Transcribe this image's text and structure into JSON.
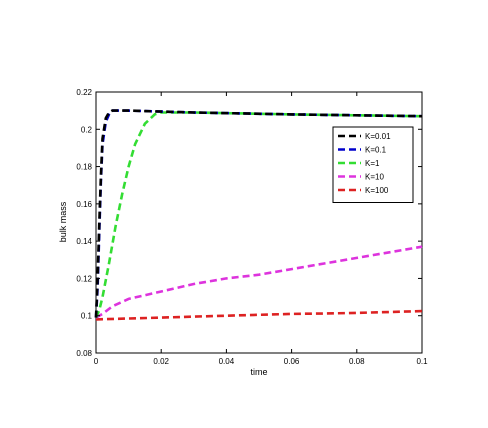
{
  "chart_data": {
    "type": "line",
    "title": "",
    "xlabel": "time",
    "ylabel": "bulk mass",
    "xlim": [
      0,
      0.1
    ],
    "ylim": [
      0.08,
      0.22
    ],
    "xticks": [
      0,
      0.02,
      0.04,
      0.06,
      0.08,
      0.1
    ],
    "yticks": [
      0.08,
      0.1,
      0.12,
      0.14,
      0.16,
      0.18,
      0.2,
      0.22
    ],
    "xtick_labels": [
      "0",
      "0.02",
      "0.04",
      "0.06",
      "0.08",
      "0.1"
    ],
    "ytick_labels": [
      "0.08",
      "0.1",
      "0.12",
      "0.14",
      "0.16",
      "0.18",
      "0.2",
      "0.22"
    ],
    "grid": false,
    "legend_position": "top-right",
    "series": [
      {
        "name": "K=0.01",
        "color": "#000000",
        "x": [
          0,
          0.0005,
          0.001,
          0.0015,
          0.002,
          0.003,
          0.004,
          0.005,
          0.007,
          0.01,
          0.03,
          0.06,
          0.1
        ],
        "y": [
          0.099,
          0.12,
          0.15,
          0.175,
          0.195,
          0.206,
          0.209,
          0.21,
          0.21,
          0.21,
          0.209,
          0.208,
          0.207
        ]
      },
      {
        "name": "K=0.1",
        "color": "#0000cc",
        "x": [
          0,
          0.0005,
          0.001,
          0.0015,
          0.002,
          0.003,
          0.004,
          0.005,
          0.007,
          0.01,
          0.03,
          0.06,
          0.1
        ],
        "y": [
          0.099,
          0.115,
          0.145,
          0.172,
          0.192,
          0.204,
          0.208,
          0.21,
          0.21,
          0.21,
          0.209,
          0.208,
          0.207
        ]
      },
      {
        "name": "K=1",
        "color": "#33dd33",
        "x": [
          0,
          0.001,
          0.002,
          0.004,
          0.006,
          0.008,
          0.01,
          0.012,
          0.015,
          0.018,
          0.02,
          0.03,
          0.06,
          0.1
        ],
        "y": [
          0.099,
          0.103,
          0.11,
          0.128,
          0.148,
          0.165,
          0.18,
          0.192,
          0.203,
          0.208,
          0.209,
          0.209,
          0.208,
          0.207
        ]
      },
      {
        "name": "K=10",
        "color": "#dd33dd",
        "x": [
          0,
          0.002,
          0.005,
          0.01,
          0.02,
          0.03,
          0.04,
          0.05,
          0.06,
          0.07,
          0.08,
          0.09,
          0.1
        ],
        "y": [
          0.099,
          0.101,
          0.105,
          0.109,
          0.113,
          0.117,
          0.12,
          0.122,
          0.125,
          0.128,
          0.131,
          0.134,
          0.137
        ]
      },
      {
        "name": "K=100",
        "color": "#dd2222",
        "x": [
          0,
          0.01,
          0.02,
          0.03,
          0.04,
          0.05,
          0.06,
          0.07,
          0.08,
          0.09,
          0.1
        ],
        "y": [
          0.098,
          0.0985,
          0.099,
          0.0995,
          0.1,
          0.1005,
          0.101,
          0.1012,
          0.1015,
          0.102,
          0.1025
        ]
      }
    ]
  }
}
